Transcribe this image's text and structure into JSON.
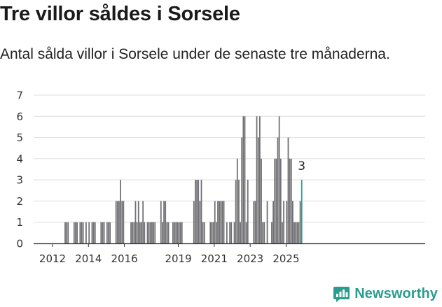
{
  "title": "Tre villor såldes i Sorsele",
  "subtitle": "Antal sålda villor i Sorsele under de senaste tre månaderna.",
  "brand": {
    "name": "Newsworthy",
    "color": "#2a9d8f",
    "icon": "bar-chart-speech-icon"
  },
  "colors": {
    "bar": "#707074",
    "highlight": "#2a9d8f",
    "grid": "#dcdcdc",
    "axis": "#333333"
  },
  "chart_data": {
    "type": "bar",
    "title": "Tre villor såldes i Sorsele",
    "subtitle": "Antal sålda villor i Sorsele under de senaste tre månaderna.",
    "xlabel": "",
    "ylabel": "",
    "ylim": [
      0,
      7
    ],
    "yticks": [
      "0",
      "1",
      "2",
      "3",
      "4",
      "5",
      "6",
      "7"
    ],
    "xticks": [
      {
        "label": "2012",
        "year": 2012
      },
      {
        "label": "2014",
        "year": 2014
      },
      {
        "label": "2016",
        "year": 2016
      },
      {
        "label": "2019",
        "year": 2019
      },
      {
        "label": "2021",
        "year": 2021
      },
      {
        "label": "2023",
        "year": 2023
      },
      {
        "label": "2025",
        "year": 2025
      }
    ],
    "grid": true,
    "frequency": "monthly",
    "series": [
      {
        "points": [
          [
            "2012-09",
            1
          ],
          [
            "2012-10",
            1
          ],
          [
            "2012-11",
            1
          ],
          [
            "2013-03",
            1
          ],
          [
            "2013-04",
            1
          ],
          [
            "2013-05",
            1
          ],
          [
            "2013-07",
            1
          ],
          [
            "2013-08",
            1
          ],
          [
            "2013-09",
            1
          ],
          [
            "2013-11",
            1
          ],
          [
            "2014-01",
            1
          ],
          [
            "2014-03",
            1
          ],
          [
            "2014-04",
            1
          ],
          [
            "2014-05",
            1
          ],
          [
            "2014-09",
            1
          ],
          [
            "2014-10",
            1
          ],
          [
            "2014-11",
            1
          ],
          [
            "2015-01",
            1
          ],
          [
            "2015-02",
            1
          ],
          [
            "2015-03",
            1
          ],
          [
            "2015-07",
            2
          ],
          [
            "2015-08",
            2
          ],
          [
            "2015-09",
            2
          ],
          [
            "2015-10",
            3
          ],
          [
            "2015-11",
            2
          ],
          [
            "2015-12",
            2
          ],
          [
            "2016-05",
            1
          ],
          [
            "2016-06",
            1
          ],
          [
            "2016-07",
            1
          ],
          [
            "2016-08",
            2
          ],
          [
            "2016-09",
            1
          ],
          [
            "2016-10",
            2
          ],
          [
            "2016-11",
            1
          ],
          [
            "2016-12",
            1
          ],
          [
            "2017-01",
            2
          ],
          [
            "2017-02",
            1
          ],
          [
            "2017-04",
            1
          ],
          [
            "2017-05",
            1
          ],
          [
            "2017-06",
            1
          ],
          [
            "2017-07",
            1
          ],
          [
            "2017-08",
            1
          ],
          [
            "2017-09",
            1
          ],
          [
            "2018-01",
            2
          ],
          [
            "2018-02",
            1
          ],
          [
            "2018-03",
            2
          ],
          [
            "2018-04",
            2
          ],
          [
            "2018-05",
            1
          ],
          [
            "2018-06",
            1
          ],
          [
            "2018-09",
            1
          ],
          [
            "2018-10",
            1
          ],
          [
            "2018-11",
            1
          ],
          [
            "2018-12",
            1
          ],
          [
            "2019-01",
            1
          ],
          [
            "2019-02",
            1
          ],
          [
            "2019-03",
            1
          ],
          [
            "2019-11",
            2
          ],
          [
            "2019-12",
            3
          ],
          [
            "2020-01",
            3
          ],
          [
            "2020-02",
            3
          ],
          [
            "2020-03",
            2
          ],
          [
            "2020-04",
            3
          ],
          [
            "2020-05",
            1
          ],
          [
            "2020-06",
            1
          ],
          [
            "2020-10",
            1
          ],
          [
            "2020-11",
            1
          ],
          [
            "2020-12",
            1
          ],
          [
            "2021-01",
            2
          ],
          [
            "2021-02",
            1
          ],
          [
            "2021-03",
            2
          ],
          [
            "2021-04",
            2
          ],
          [
            "2021-05",
            2
          ],
          [
            "2021-06",
            2
          ],
          [
            "2021-07",
            2
          ],
          [
            "2021-09",
            1
          ],
          [
            "2021-11",
            1
          ],
          [
            "2021-12",
            1
          ],
          [
            "2022-02",
            1
          ],
          [
            "2022-03",
            3
          ],
          [
            "2022-04",
            4
          ],
          [
            "2022-05",
            3
          ],
          [
            "2022-06",
            1
          ],
          [
            "2022-07",
            5
          ],
          [
            "2022-08",
            6
          ],
          [
            "2022-09",
            6
          ],
          [
            "2022-10",
            1
          ],
          [
            "2022-11",
            3
          ],
          [
            "2023-03",
            2
          ],
          [
            "2023-04",
            2
          ],
          [
            "2023-05",
            6
          ],
          [
            "2023-06",
            5
          ],
          [
            "2023-07",
            6
          ],
          [
            "2023-08",
            4
          ],
          [
            "2023-09",
            1
          ],
          [
            "2023-10",
            1
          ],
          [
            "2023-12",
            2
          ],
          [
            "2024-03",
            1
          ],
          [
            "2024-04",
            2
          ],
          [
            "2024-05",
            4
          ],
          [
            "2024-06",
            4
          ],
          [
            "2024-07",
            5
          ],
          [
            "2024-08",
            6
          ],
          [
            "2024-09",
            4
          ],
          [
            "2024-10",
            1
          ],
          [
            "2024-11",
            2
          ],
          [
            "2025-01",
            2
          ],
          [
            "2025-02",
            5
          ],
          [
            "2025-03",
            4
          ],
          [
            "2025-04",
            4
          ],
          [
            "2025-05",
            2
          ],
          [
            "2025-06",
            1
          ],
          [
            "2025-07",
            1
          ],
          [
            "2025-08",
            1
          ],
          [
            "2025-09",
            1
          ],
          [
            "2025-10",
            2
          ],
          [
            "2025-11",
            3
          ]
        ]
      }
    ],
    "highlight": {
      "date": "2025-11",
      "value": 3,
      "label": "3"
    }
  }
}
